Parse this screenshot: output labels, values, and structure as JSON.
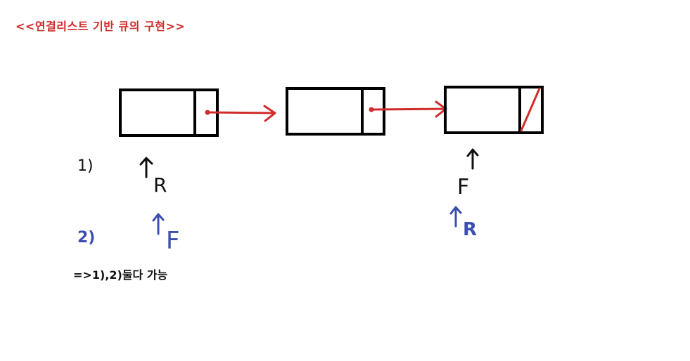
{
  "title": "<<연결리스트 기반 큐의 구현>>",
  "nodes": [
    {
      "id": "node-1",
      "next": "node-2",
      "null_link": false
    },
    {
      "id": "node-2",
      "next": "node-3",
      "null_link": false
    },
    {
      "id": "node-3",
      "next": null,
      "null_link": true
    }
  ],
  "case1": {
    "label": "1)",
    "left_pointer": "R",
    "right_pointer": "F",
    "color": "#111111"
  },
  "case2": {
    "label": "2)",
    "left_pointer": "F",
    "right_pointer": "R",
    "color": "#3d4fae"
  },
  "conclusion": "=>1),2)둘다 가능",
  "colors": {
    "title": "#d22b2b",
    "link_arrow": "#d22b2b",
    "node_border": "#000000"
  }
}
